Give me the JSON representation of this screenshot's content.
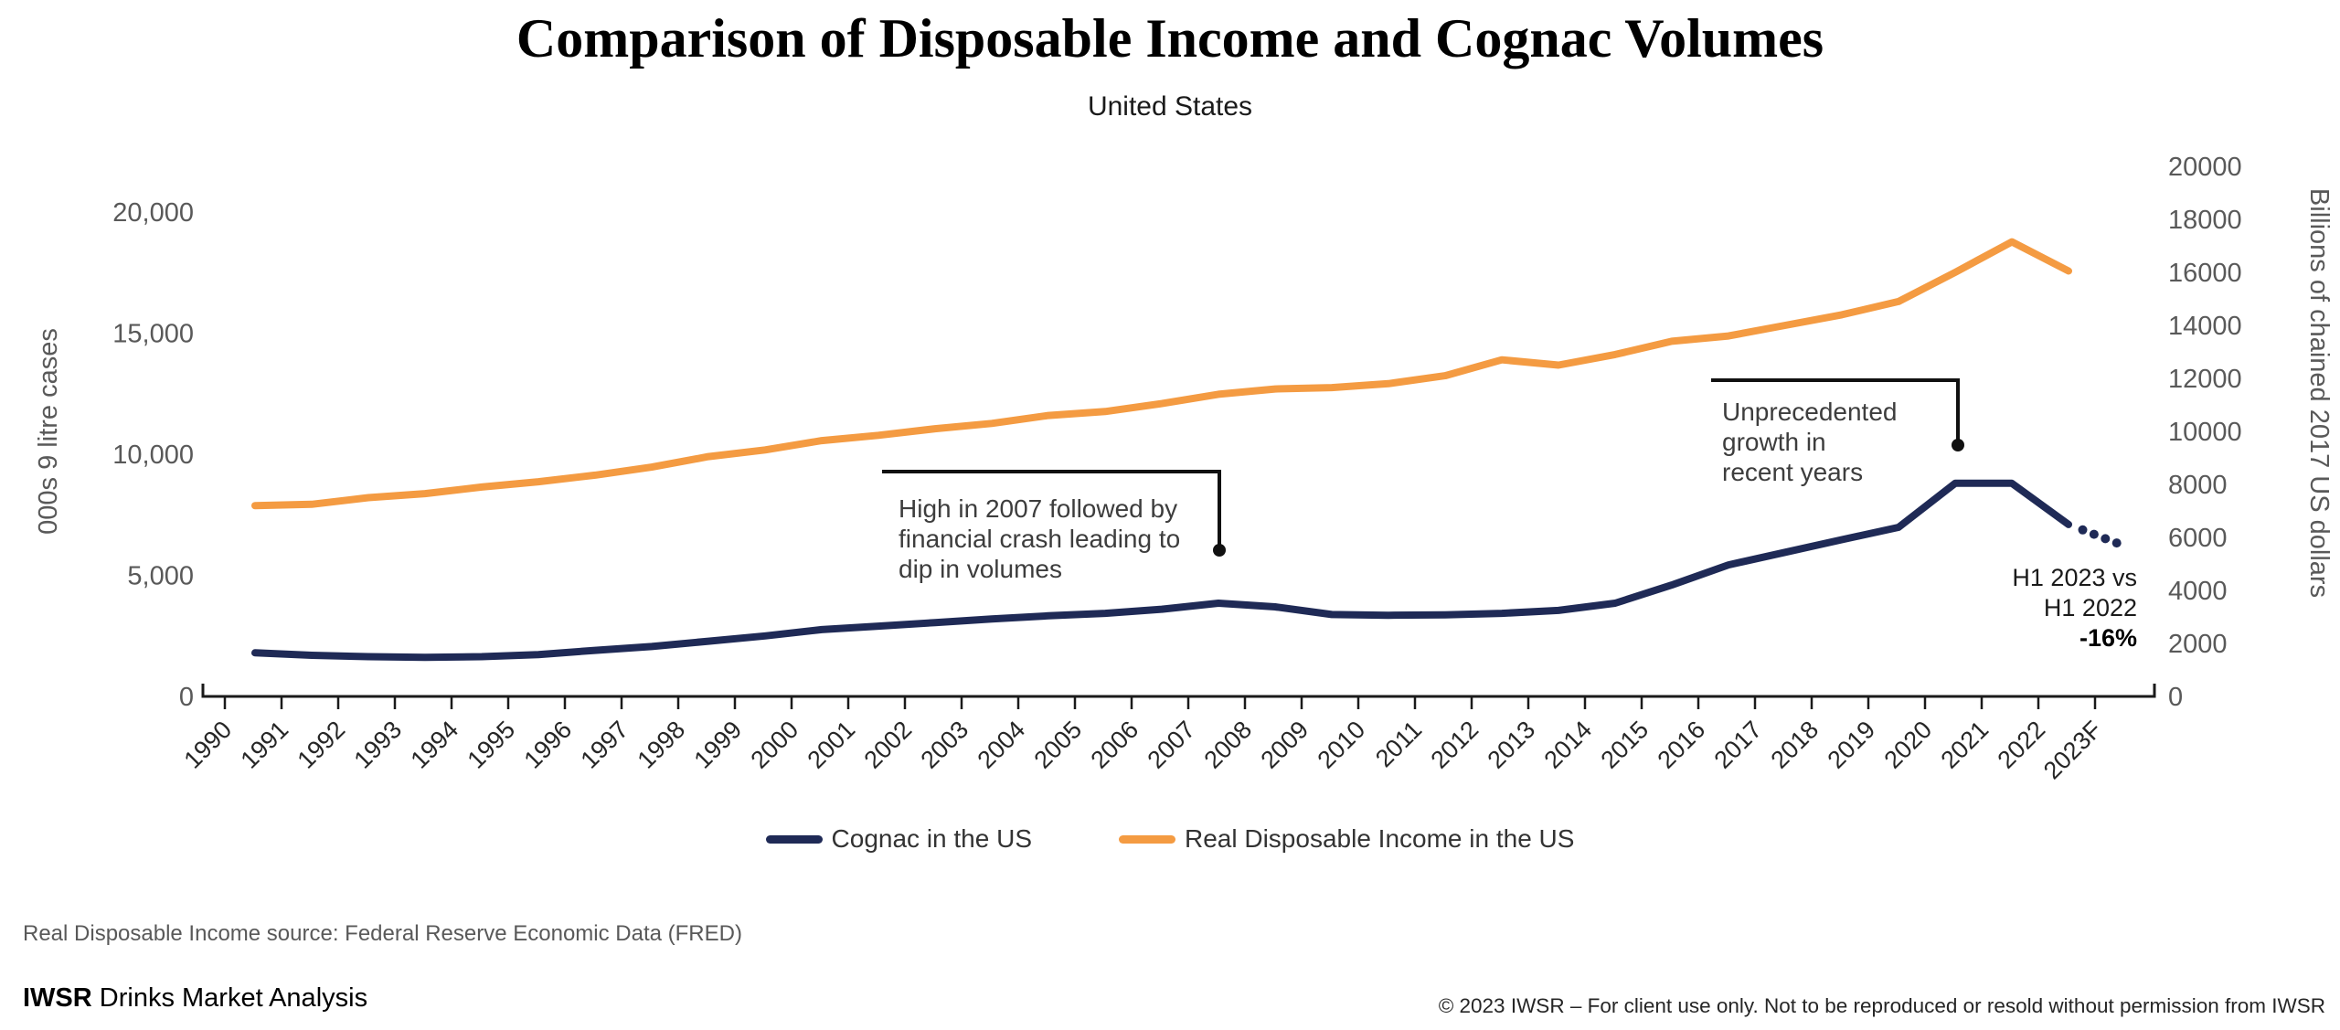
{
  "header": {
    "title": "Comparison of Disposable Income and Cognac Volumes",
    "subtitle": "United States"
  },
  "chart_data": {
    "type": "line",
    "x": [
      "1990",
      "1991",
      "1992",
      "1993",
      "1994",
      "1995",
      "1996",
      "1997",
      "1998",
      "1999",
      "2000",
      "2001",
      "2002",
      "2003",
      "2004",
      "2005",
      "2006",
      "2007",
      "2008",
      "2009",
      "2010",
      "2011",
      "2012",
      "2013",
      "2014",
      "2015",
      "2016",
      "2017",
      "2018",
      "2019",
      "2020",
      "2021",
      "2022",
      "2023F"
    ],
    "series": [
      {
        "name": "Cognac in the US",
        "axis": "left",
        "color": "#1F2A56",
        "unit": "000s 9 litre cases",
        "values": [
          1800,
          1700,
          1640,
          1610,
          1640,
          1730,
          1900,
          2060,
          2280,
          2500,
          2760,
          2900,
          3050,
          3200,
          3330,
          3430,
          3600,
          3850,
          3700,
          3380,
          3350,
          3370,
          3430,
          3550,
          3850,
          4600,
          5430,
          5950,
          6470,
          6980,
          8800,
          8800,
          7100,
          6200
        ],
        "forecast_start_index": 32,
        "forecast_style": "dotted"
      },
      {
        "name": "Real Disposable Income in the US",
        "axis": "right",
        "color": "#F49B42",
        "unit": "Billions of chained 2017 US dollars",
        "values": [
          7200,
          7250,
          7500,
          7650,
          7900,
          8100,
          8350,
          8650,
          9050,
          9300,
          9650,
          9850,
          10100,
          10300,
          10600,
          10750,
          11050,
          11400,
          11600,
          11650,
          11800,
          12100,
          12700,
          12500,
          12900,
          13400,
          13600,
          14000,
          14400,
          14900,
          16000,
          17150,
          16050,
          null
        ]
      }
    ],
    "left_axis": {
      "title": "000s 9 litre cases",
      "tick_values": [
        0,
        5000,
        10000,
        15000,
        20000
      ],
      "tick_labels": [
        "0",
        "5,000",
        "10,000",
        "15,000",
        "20,000"
      ],
      "range": [
        0,
        20000
      ]
    },
    "right_axis": {
      "title": "Billions of chained 2017 US dollars",
      "tick_values": [
        0,
        2000,
        4000,
        6000,
        8000,
        10000,
        12000,
        14000,
        16000,
        18000,
        20000
      ],
      "tick_labels": [
        "0",
        "2000",
        "4000",
        "6000",
        "8000",
        "10000",
        "12000",
        "14000",
        "16000",
        "18000",
        "20000"
      ],
      "range": [
        0,
        20000
      ]
    },
    "grid": false,
    "legend_position": "bottom-center"
  },
  "annotations": {
    "high_2007": {
      "lines": [
        "High in 2007 followed by",
        "financial crash leading to",
        "dip in volumes"
      ]
    },
    "recent_growth": {
      "lines": [
        "Unprecedented",
        "growth in",
        "recent years"
      ]
    },
    "h1_note": {
      "lines": [
        "H1 2023 vs",
        "H1 2022"
      ],
      "value": "-16%"
    }
  },
  "footer": {
    "source": "Real Disposable Income source: Federal Reserve Economic Data (FRED)",
    "brand_bold": "IWSR",
    "brand_rest": " Drinks Market Analysis",
    "copyright": "© 2023 IWSR – For client use only. Not to be reproduced or resold without permission from IWSR"
  }
}
